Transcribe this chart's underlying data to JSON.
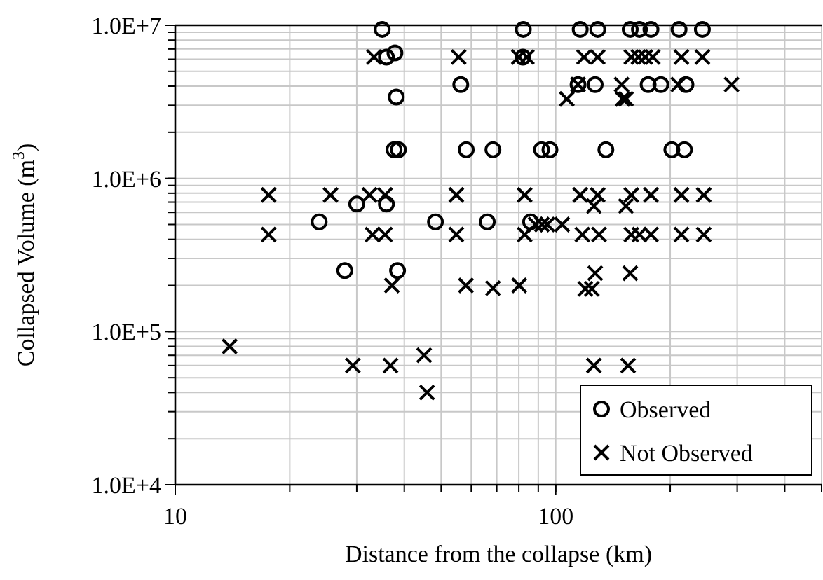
{
  "chart_data": {
    "type": "scatter",
    "xlabel": "Distance from the collapse (km)",
    "ylabel": "Collapsed Volume (m$^{3}$)",
    "log": "xy",
    "grid": true,
    "legend": "bottom right",
    "xlim": [
      10,
      500
    ],
    "xticks": [
      10,
      100
    ],
    "ylim": [
      10000,
      10000000
    ],
    "yticks": [
      {
        "value": 10000,
        "label": "1.0E+4"
      },
      {
        "value": 100000,
        "label": "1.0E+5"
      },
      {
        "value": 1000000,
        "label": "1.0E+6"
      },
      {
        "value": 10000000,
        "label": "1.0E+7"
      }
    ],
    "series": [
      {
        "name": "Observed",
        "color": "#000000",
        "marker": "circle",
        "x": [
          35,
          35.9,
          37.8,
          38.1,
          37.6,
          38.6,
          30,
          35.9,
          23.9,
          48.3,
          27.9,
          38.4,
          56.3,
          58.2,
          82.2,
          82,
          68.4,
          91.8,
          96.6,
          66.1,
          85.9,
          116,
          129,
          157,
          166,
          178,
          211,
          243,
          114.5,
          127,
          175,
          189,
          220,
          135.5,
          202,
          218
        ],
        "values": [
          9400000,
          6200000,
          6600000,
          3400000,
          1540000,
          1540000,
          680000,
          680000,
          520000,
          520000,
          250000,
          250000,
          4100000,
          1540000,
          9400000,
          6200000,
          1540000,
          1540000,
          1540000,
          520000,
          520000,
          9400000,
          9400000,
          9400000,
          9400000,
          9400000,
          9400000,
          9400000,
          4100000,
          4100000,
          4100000,
          4100000,
          4100000,
          1540000,
          1540000,
          1540000
        ]
      },
      {
        "name": "Not Observed",
        "color": "#000000",
        "marker": "cross",
        "x": [
          33.3,
          17.6,
          25.6,
          32.4,
          35.6,
          17.6,
          33,
          35.6,
          37.1,
          55.6,
          54.8,
          54.8,
          80,
          84,
          82.9,
          88.5,
          92,
          95,
          104,
          82.9,
          118.7,
          129,
          158,
          165,
          172,
          180,
          214,
          243,
          107,
          114.5,
          149,
          150,
          153,
          210,
          290,
          116,
          129,
          158,
          178,
          214,
          245,
          126,
          153,
          117.5,
          130,
          158,
          166,
          178,
          214,
          245,
          127,
          157,
          58.1,
          68.4,
          80.2,
          119.6,
          124.5,
          126,
          155,
          13.9,
          29.3,
          36.8,
          45.1,
          45.9
        ],
        "values": [
          6200000,
          780000,
          780000,
          780000,
          780000,
          430000,
          430000,
          430000,
          200000,
          6200000,
          780000,
          430000,
          6200000,
          6200000,
          780000,
          500000,
          500000,
          500000,
          500000,
          430000,
          6200000,
          6200000,
          6200000,
          6200000,
          6200000,
          6200000,
          6200000,
          6200000,
          3300000,
          4100000,
          4100000,
          3300000,
          3300000,
          4100000,
          4100000,
          780000,
          780000,
          780000,
          780000,
          780000,
          780000,
          660000,
          660000,
          430000,
          430000,
          430000,
          430000,
          430000,
          430000,
          430000,
          240000,
          240000,
          200000,
          192000,
          200000,
          190000,
          190000,
          60000,
          60000,
          80000,
          60000,
          60000,
          70000,
          40000
        ]
      }
    ]
  }
}
